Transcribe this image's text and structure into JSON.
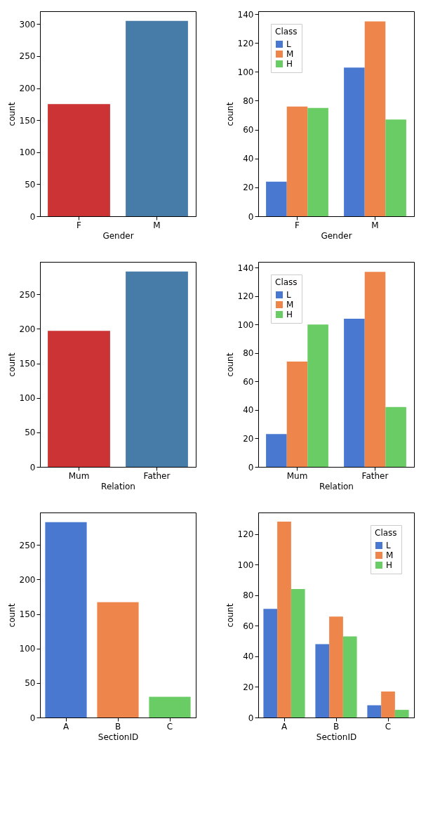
{
  "chart_data": [
    {
      "type": "bar",
      "xlabel": "Gender",
      "ylabel": "count",
      "categories": [
        "F",
        "M"
      ],
      "values": [
        175,
        305
      ],
      "colors": [
        "#cb3335",
        "#477ca8"
      ],
      "ylim": [
        0,
        320
      ],
      "yticks": [
        0,
        50,
        100,
        150,
        200,
        250,
        300
      ]
    },
    {
      "type": "bar",
      "xlabel": "Gender",
      "ylabel": "count",
      "categories": [
        "F",
        "M"
      ],
      "legend_title": "Class",
      "legend": "top left",
      "ylim": [
        0,
        142
      ],
      "yticks": [
        0,
        20,
        40,
        60,
        80,
        100,
        120,
        140
      ],
      "series": [
        {
          "name": "L",
          "color": "#4878d0",
          "values": [
            24,
            103
          ]
        },
        {
          "name": "M",
          "color": "#ee854a",
          "values": [
            76,
            135
          ]
        },
        {
          "name": "H",
          "color": "#6acc64",
          "values": [
            75,
            67
          ]
        }
      ]
    },
    {
      "type": "bar",
      "xlabel": "Relation",
      "ylabel": "count",
      "categories": [
        "Mum",
        "Father"
      ],
      "values": [
        197,
        283
      ],
      "colors": [
        "#cb3335",
        "#477ca8"
      ],
      "ylim": [
        0,
        297
      ],
      "yticks": [
        0,
        50,
        100,
        150,
        200,
        250
      ]
    },
    {
      "type": "bar",
      "xlabel": "Relation",
      "ylabel": "count",
      "categories": [
        "Mum",
        "Father"
      ],
      "legend_title": "Class",
      "legend": "top left",
      "ylim": [
        0,
        144
      ],
      "yticks": [
        0,
        20,
        40,
        60,
        80,
        100,
        120,
        140
      ],
      "series": [
        {
          "name": "L",
          "color": "#4878d0",
          "values": [
            23,
            104
          ]
        },
        {
          "name": "M",
          "color": "#ee854a",
          "values": [
            74,
            137
          ]
        },
        {
          "name": "H",
          "color": "#6acc64",
          "values": [
            100,
            42
          ]
        }
      ]
    },
    {
      "type": "bar",
      "xlabel": "SectionID",
      "ylabel": "count",
      "categories": [
        "A",
        "B",
        "C"
      ],
      "values": [
        283,
        167,
        30
      ],
      "colors": [
        "#4878d0",
        "#ee854a",
        "#6acc64"
      ],
      "ylim": [
        0,
        297
      ],
      "yticks": [
        0,
        50,
        100,
        150,
        200,
        250
      ]
    },
    {
      "type": "bar",
      "xlabel": "SectionID",
      "ylabel": "count",
      "categories": [
        "A",
        "B",
        "C"
      ],
      "legend_title": "Class",
      "legend": "top right",
      "ylim": [
        0,
        134
      ],
      "yticks": [
        0,
        20,
        40,
        60,
        80,
        100,
        120
      ],
      "series": [
        {
          "name": "L",
          "color": "#4878d0",
          "values": [
            71,
            48,
            8
          ]
        },
        {
          "name": "M",
          "color": "#ee854a",
          "values": [
            128,
            66,
            17
          ]
        },
        {
          "name": "H",
          "color": "#6acc64",
          "values": [
            84,
            53,
            5
          ]
        }
      ]
    }
  ]
}
